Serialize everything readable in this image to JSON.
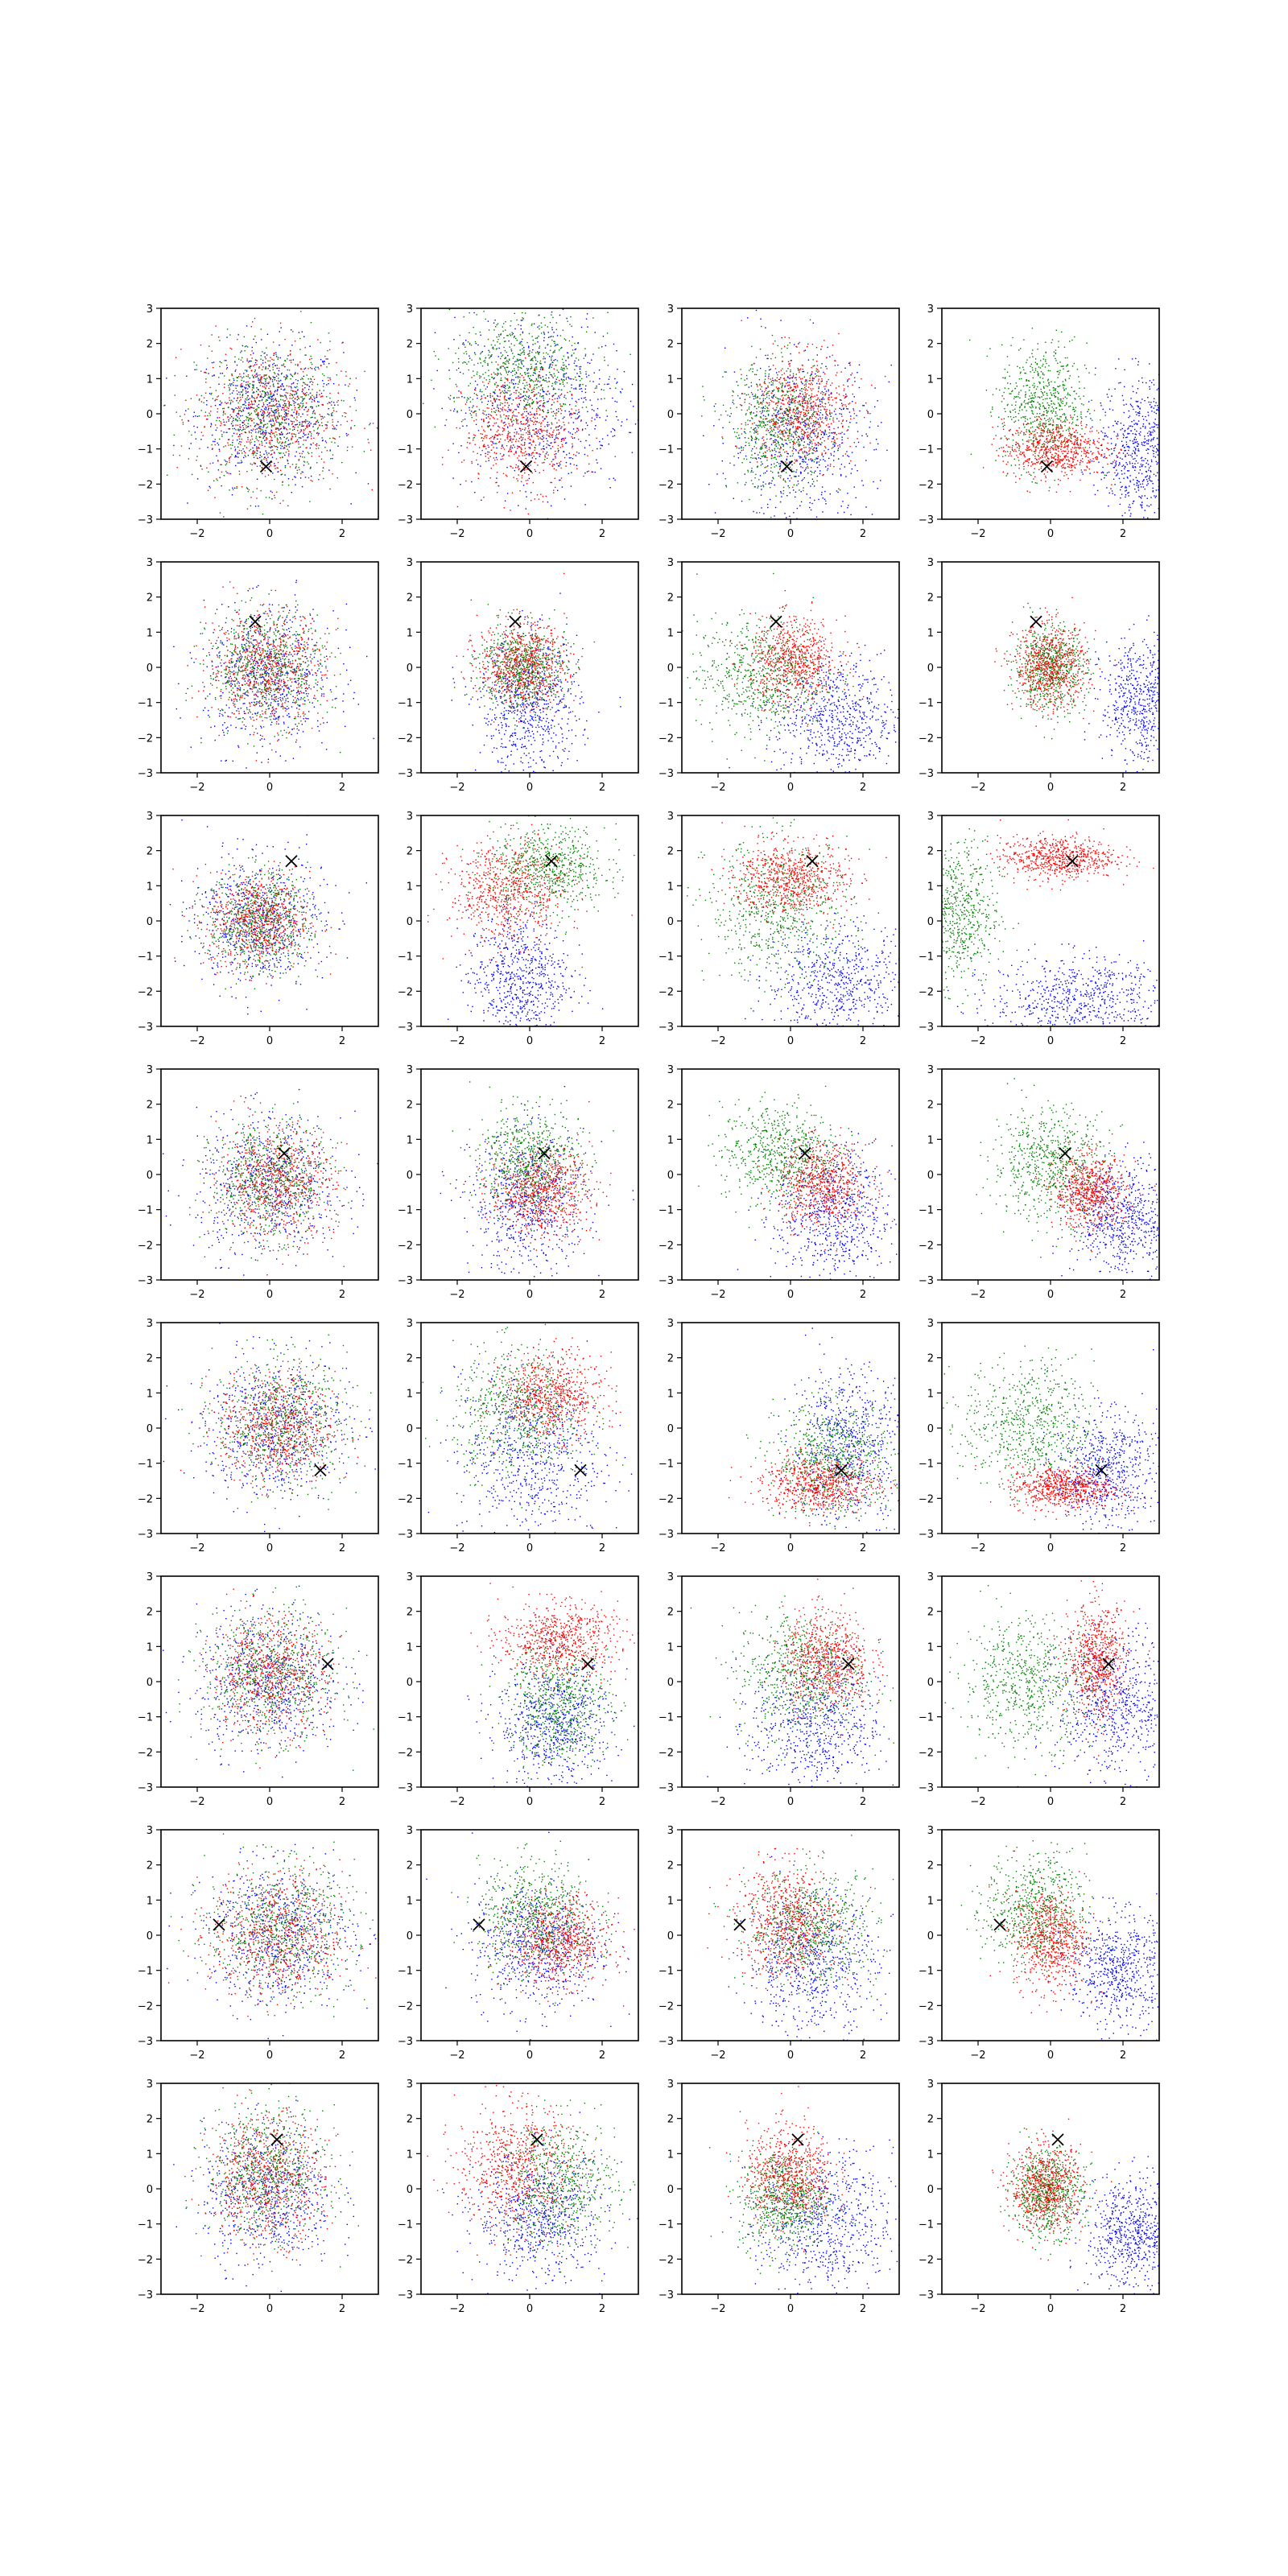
{
  "chart_data": {
    "type": "scatter",
    "layout": {
      "rows": 8,
      "cols": 4
    },
    "xlim": [
      -3,
      3
    ],
    "ylim": [
      -3,
      3
    ],
    "x_ticks": [
      -2,
      0,
      2
    ],
    "y_ticks": [
      -3,
      -2,
      -1,
      0,
      1,
      2,
      3
    ],
    "x_tick_labels": [
      "−2",
      "0",
      "2"
    ],
    "y_tick_labels": [
      "−3",
      "−2",
      "−1",
      "0",
      "1",
      "2",
      "3"
    ],
    "grid": false,
    "legend": "none",
    "series_colors": {
      "blue": "#0000ff",
      "green": "#008000",
      "red": "#ff0000"
    },
    "marker_color": "#000000",
    "rows": [
      {
        "marker": [
          -0.1,
          -1.5
        ],
        "panels": [
          {
            "blue": [
              0,
              0,
              1.0,
              1.0
            ],
            "green": [
              0,
              0,
              1.0,
              1.0
            ],
            "red": [
              0,
              0,
              1.0,
              1.0
            ]
          },
          {
            "blue": [
              0.3,
              0.3,
              1.2,
              1.3
            ],
            "green": [
              -0.2,
              1.2,
              1.0,
              0.8
            ],
            "red": [
              -0.2,
              -0.5,
              0.8,
              0.8
            ]
          },
          {
            "blue": [
              0.3,
              -0.7,
              1.0,
              1.2
            ],
            "green": [
              -0.3,
              -0.3,
              0.7,
              0.9
            ],
            "red": [
              0.3,
              0.1,
              0.7,
              0.8
            ]
          },
          {
            "blue": [
              2.5,
              -1.0,
              0.6,
              1.0
            ],
            "green": [
              -0.2,
              0.2,
              0.6,
              0.9
            ],
            "red": [
              0.1,
              -1.0,
              0.7,
              0.4
            ]
          }
        ]
      },
      {
        "marker": [
          -0.4,
          1.3
        ],
        "panels": [
          {
            "blue": [
              0,
              -0.3,
              0.9,
              1.0
            ],
            "green": [
              -0.1,
              0,
              0.8,
              0.8
            ],
            "red": [
              -0.1,
              0,
              0.8,
              0.8
            ]
          },
          {
            "blue": [
              0,
              -1.2,
              0.7,
              1.0
            ],
            "green": [
              -0.2,
              0,
              0.6,
              0.6
            ],
            "red": [
              -0.2,
              0.1,
              0.6,
              0.6
            ]
          },
          {
            "blue": [
              1.3,
              -1.5,
              0.9,
              0.9
            ],
            "green": [
              -0.8,
              -0.2,
              0.9,
              0.8
            ],
            "red": [
              0.1,
              0.2,
              0.6,
              0.6
            ]
          },
          {
            "blue": [
              2.6,
              -1.0,
              0.6,
              0.9
            ],
            "green": [
              0.0,
              0.0,
              0.5,
              0.6
            ],
            "red": [
              0.0,
              0.0,
              0.5,
              0.6
            ]
          }
        ]
      },
      {
        "marker": [
          0.6,
          1.7
        ],
        "panels": [
          {
            "blue": [
              -0.3,
              0,
              0.9,
              0.9
            ],
            "green": [
              -0.3,
              0,
              0.7,
              0.7
            ],
            "red": [
              -0.3,
              0,
              0.7,
              0.7
            ]
          },
          {
            "blue": [
              -0.3,
              -1.6,
              0.7,
              0.9
            ],
            "green": [
              0.5,
              1.5,
              0.8,
              0.6
            ],
            "red": [
              -0.6,
              0.8,
              0.8,
              0.7
            ]
          },
          {
            "blue": [
              1.3,
              -1.8,
              1.0,
              0.9
            ],
            "green": [
              -0.3,
              0.3,
              1.0,
              1.0
            ],
            "red": [
              0.0,
              1.2,
              0.8,
              0.5
            ]
          },
          {
            "blue": [
              0.8,
              -2.2,
              1.2,
              0.6
            ],
            "green": [
              -2.6,
              0.2,
              0.6,
              1.0
            ],
            "red": [
              0.2,
              1.8,
              0.8,
              0.3
            ]
          }
        ]
      },
      {
        "marker": [
          0.4,
          0.6
        ],
        "panels": [
          {
            "blue": [
              0,
              -0.3,
              1.0,
              1.0
            ],
            "green": [
              0,
              -0.2,
              0.8,
              0.8
            ],
            "red": [
              0.2,
              -0.2,
              0.8,
              0.8
            ]
          },
          {
            "blue": [
              0,
              -0.8,
              0.8,
              1.0
            ],
            "green": [
              0,
              0.4,
              0.7,
              0.7
            ],
            "red": [
              0.3,
              -0.5,
              0.7,
              0.6
            ]
          },
          {
            "blue": [
              1.2,
              -1.2,
              0.8,
              1.0
            ],
            "green": [
              -0.3,
              0.6,
              0.8,
              0.7
            ],
            "red": [
              0.9,
              -0.3,
              0.6,
              0.6
            ]
          },
          {
            "blue": [
              2.0,
              -1.3,
              0.7,
              0.8
            ],
            "green": [
              0.0,
              0.3,
              0.8,
              0.8
            ],
            "red": [
              1.1,
              -0.5,
              0.5,
              0.5
            ]
          }
        ]
      },
      {
        "marker": [
          1.4,
          -1.2
        ],
        "panels": [
          {
            "blue": [
              0.2,
              0,
              1.0,
              1.0
            ],
            "green": [
              0.3,
              0.2,
              0.9,
              0.9
            ],
            "red": [
              0.2,
              0,
              0.8,
              0.8
            ]
          },
          {
            "blue": [
              0,
              -0.8,
              1.0,
              1.2
            ],
            "green": [
              -0.3,
              0.5,
              0.9,
              0.9
            ],
            "red": [
              0.6,
              0.9,
              0.7,
              0.6
            ]
          },
          {
            "blue": [
              1.6,
              -0.5,
              0.8,
              1.1
            ],
            "green": [
              1.2,
              -0.9,
              0.8,
              0.8
            ],
            "red": [
              0.8,
              -1.6,
              0.8,
              0.4
            ]
          },
          {
            "blue": [
              1.5,
              -1.2,
              0.7,
              0.8
            ],
            "green": [
              -0.6,
              0.1,
              0.9,
              0.9
            ],
            "red": [
              0.3,
              -1.7,
              0.7,
              0.3
            ]
          }
        ]
      },
      {
        "marker": [
          1.6,
          0.5
        ],
        "panels": [
          {
            "blue": [
              0,
              0,
              1.0,
              1.0
            ],
            "green": [
              0,
              0.2,
              0.9,
              0.9
            ],
            "red": [
              0,
              0.2,
              0.8,
              0.8
            ]
          },
          {
            "blue": [
              0.7,
              -1.2,
              0.8,
              0.9
            ],
            "green": [
              0.8,
              -0.6,
              0.7,
              0.9
            ],
            "red": [
              0.8,
              1.2,
              0.8,
              0.5
            ]
          },
          {
            "blue": [
              0.7,
              -1.2,
              0.9,
              1.0
            ],
            "green": [
              0.3,
              0.2,
              0.9,
              0.9
            ],
            "red": [
              1.0,
              0.6,
              0.6,
              0.7
            ]
          },
          {
            "blue": [
              1.8,
              -0.7,
              0.8,
              1.0
            ],
            "green": [
              -0.6,
              0.0,
              0.9,
              0.9
            ],
            "red": [
              1.3,
              0.6,
              0.4,
              0.8
            ]
          }
        ]
      },
      {
        "marker": [
          -1.4,
          0.3
        ],
        "panels": [
          {
            "blue": [
              0.3,
              0,
              1.0,
              1.0
            ],
            "green": [
              0.3,
              0.2,
              1.0,
              0.9
            ],
            "red": [
              0.2,
              0,
              0.9,
              0.9
            ]
          },
          {
            "blue": [
              0.2,
              -0.3,
              0.9,
              0.9
            ],
            "green": [
              0.2,
              0.5,
              0.8,
              0.8
            ],
            "red": [
              0.8,
              -0.2,
              0.7,
              0.6
            ]
          },
          {
            "blue": [
              0.6,
              -0.8,
              0.9,
              1.0
            ],
            "green": [
              0.6,
              0.2,
              0.9,
              0.8
            ],
            "red": [
              -0.1,
              0.4,
              0.7,
              0.8
            ]
          },
          {
            "blue": [
              1.9,
              -1.0,
              0.7,
              0.8
            ],
            "green": [
              -0.4,
              0.7,
              0.7,
              0.8
            ],
            "red": [
              0.0,
              -0.1,
              0.5,
              0.7
            ]
          }
        ]
      },
      {
        "marker": [
          0.2,
          1.4
        ],
        "panels": [
          {
            "blue": [
              0,
              -0.2,
              0.9,
              1.0
            ],
            "green": [
              -0.1,
              0.5,
              0.8,
              0.9
            ],
            "red": [
              -0.1,
              0.3,
              0.8,
              0.9
            ]
          },
          {
            "blue": [
              0.3,
              -0.8,
              0.9,
              0.9
            ],
            "green": [
              0.8,
              0.2,
              0.8,
              0.9
            ],
            "red": [
              -0.4,
              0.6,
              0.8,
              0.9
            ]
          },
          {
            "blue": [
              1.0,
              -1.0,
              0.9,
              1.0
            ],
            "green": [
              -0.2,
              -0.3,
              0.6,
              0.7
            ],
            "red": [
              0.0,
              0.4,
              0.6,
              0.7
            ]
          },
          {
            "blue": [
              2.2,
              -1.3,
              0.6,
              0.8
            ],
            "green": [
              -0.1,
              -0.1,
              0.5,
              0.6
            ],
            "red": [
              -0.1,
              0.0,
              0.5,
              0.6
            ]
          }
        ]
      }
    ]
  }
}
